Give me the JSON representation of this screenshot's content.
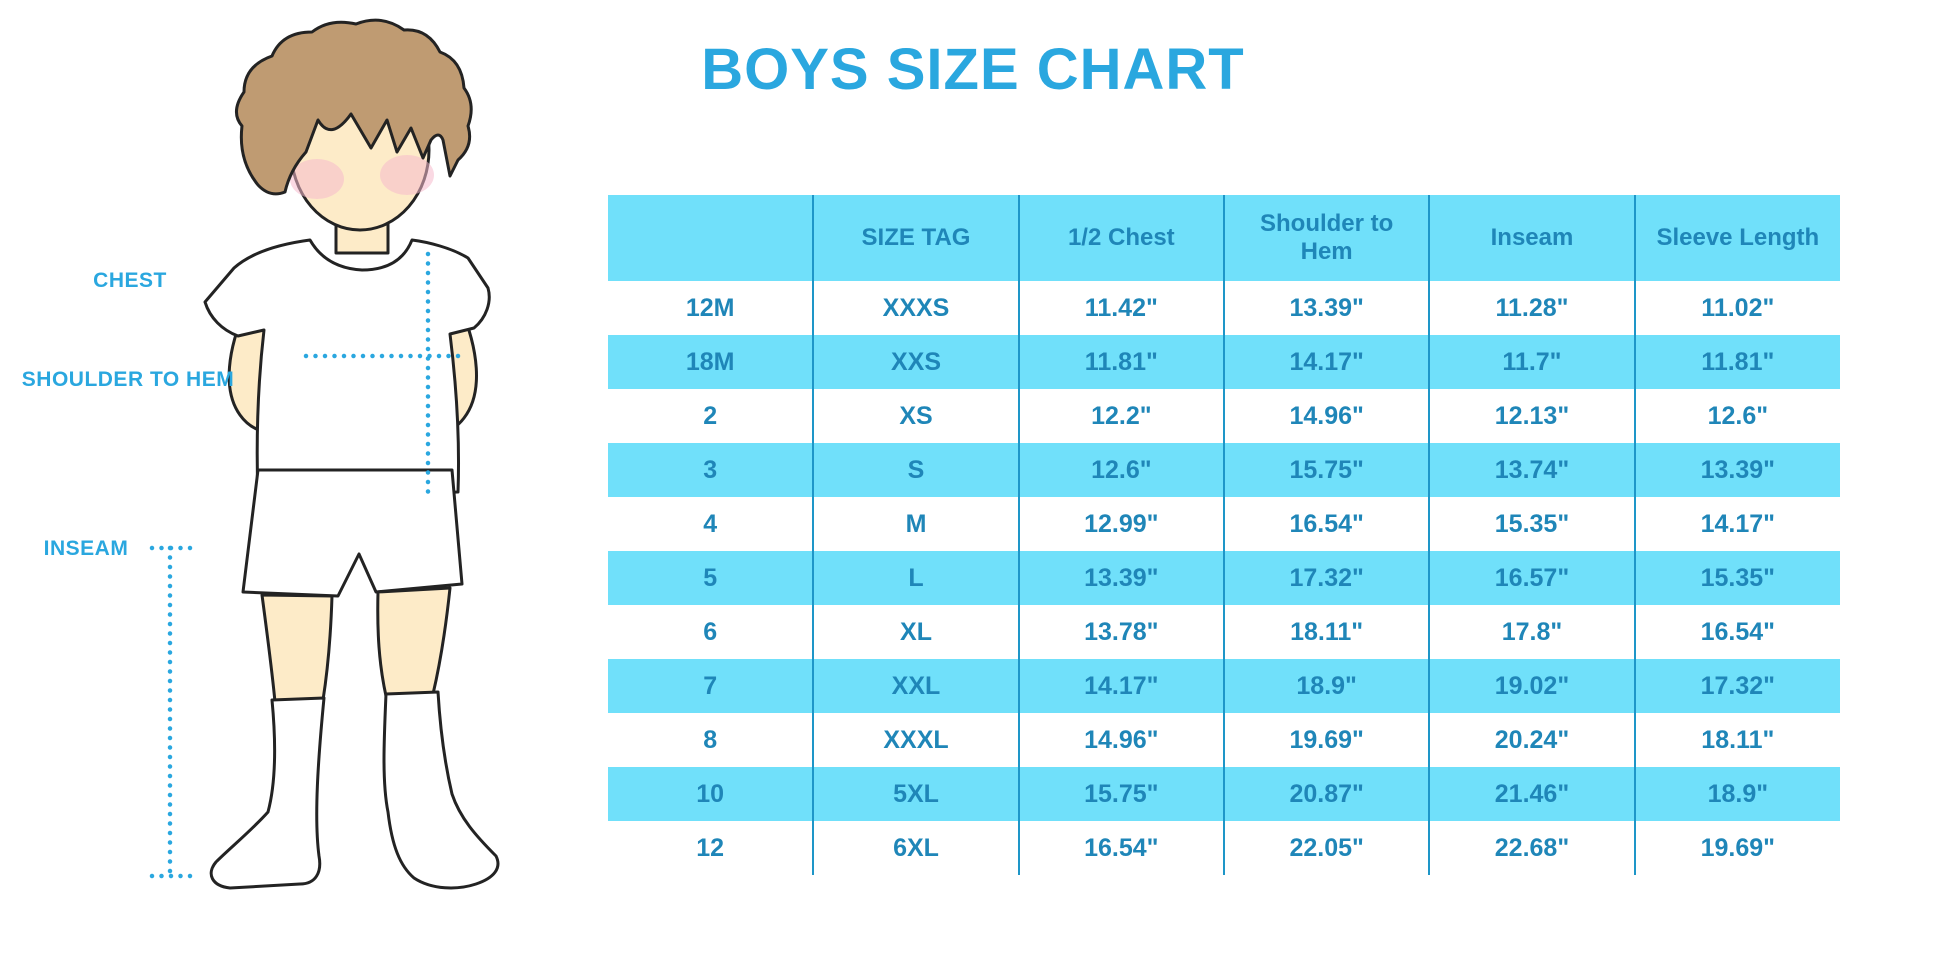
{
  "title": "BOYS SIZE CHART",
  "diagram": {
    "labels": [
      {
        "id": "chest",
        "text": "CHEST"
      },
      {
        "id": "shoulder-to-hem",
        "text": "SHOULDER TO HEM"
      },
      {
        "id": "inseam",
        "text": "INSEAM"
      }
    ]
  },
  "chart_data": {
    "type": "table",
    "title": "BOYS SIZE CHART",
    "columns": [
      "",
      "SIZE TAG",
      "1/2 Chest",
      "Shoulder to Hem",
      "Inseam",
      "Sleeve Length"
    ],
    "rows": [
      [
        "12M",
        "XXXS",
        "11.42\"",
        "13.39\"",
        "11.28\"",
        "11.02\""
      ],
      [
        "18M",
        "XXS",
        "11.81\"",
        "14.17\"",
        "11.7\"",
        "11.81\""
      ],
      [
        "2",
        "XS",
        "12.2\"",
        "14.96\"",
        "12.13\"",
        "12.6\""
      ],
      [
        "3",
        "S",
        "12.6\"",
        "15.75\"",
        "13.74\"",
        "13.39\""
      ],
      [
        "4",
        "M",
        "12.99\"",
        "16.54\"",
        "15.35\"",
        "14.17\""
      ],
      [
        "5",
        "L",
        "13.39\"",
        "17.32\"",
        "16.57\"",
        "15.35\""
      ],
      [
        "6",
        "XL",
        "13.78\"",
        "18.11\"",
        "17.8\"",
        "16.54\""
      ],
      [
        "7",
        "XXL",
        "14.17\"",
        "18.9\"",
        "19.02\"",
        "17.32\""
      ],
      [
        "8",
        "XXXL",
        "14.96\"",
        "19.69\"",
        "20.24\"",
        "18.11\""
      ],
      [
        "10",
        "5XL",
        "15.75\"",
        "20.87\"",
        "21.46\"",
        "18.9\""
      ],
      [
        "12",
        "6XL",
        "16.54\"",
        "22.05\"",
        "22.68\"",
        "19.69\""
      ]
    ],
    "row_stripe_note": "header and every second data row use light blue stripe",
    "units": "inches"
  },
  "colors": {
    "accent_blue": "#2AA7DF",
    "table_stripe": "#70E0FA",
    "table_border": "#1E96C8",
    "table_text": "#1F86B8",
    "hair": "#BF9B72",
    "skin": "#FDEBC8",
    "cheek": "#F6B9CC",
    "outline": "#232323"
  }
}
